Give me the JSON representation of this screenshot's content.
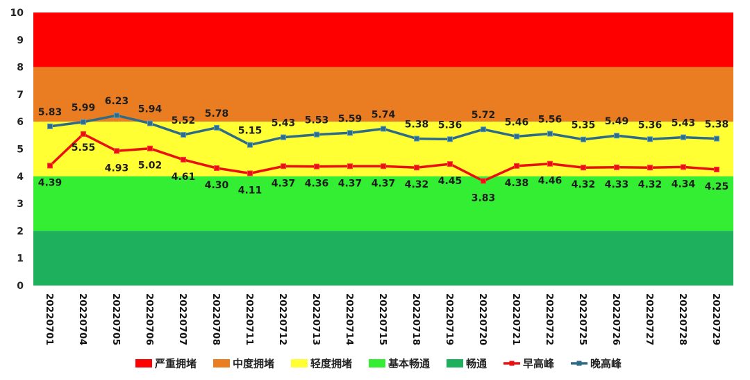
{
  "chart_data": {
    "type": "line",
    "title": "",
    "xlabel": "",
    "ylabel": "",
    "ylim": [
      0,
      10
    ],
    "yticks": [
      0,
      1,
      2,
      3,
      4,
      5,
      6,
      7,
      8,
      9,
      10
    ],
    "grid": false,
    "legend_position": "bottom",
    "categories": [
      "20220701",
      "20220704",
      "20220705",
      "20220706",
      "20220707",
      "20220708",
      "20220711",
      "20220712",
      "20220713",
      "20220714",
      "20220715",
      "20220718",
      "20220719",
      "20220720",
      "20220721",
      "20220722",
      "20220725",
      "20220726",
      "20220727",
      "20220728",
      "20220729"
    ],
    "bands": [
      {
        "name": "严重拥堵",
        "from": 8,
        "to": 10,
        "color": "#ff0000"
      },
      {
        "name": "中度拥堵",
        "from": 6,
        "to": 8,
        "color": "#ea7d22"
      },
      {
        "name": "轻度拥堵",
        "from": 4,
        "to": 6,
        "color": "#ffff33"
      },
      {
        "name": "基本畅通",
        "from": 2,
        "to": 4,
        "color": "#33ee33"
      },
      {
        "name": "畅通",
        "from": 0,
        "to": 2,
        "color": "#1fb05e"
      }
    ],
    "series": [
      {
        "name": "早高峰",
        "color": "#e81010",
        "values": [
          4.39,
          5.55,
          4.93,
          5.02,
          4.61,
          4.3,
          4.11,
          4.37,
          4.36,
          4.37,
          4.37,
          4.32,
          4.45,
          3.83,
          4.38,
          4.46,
          4.32,
          4.33,
          4.32,
          4.34,
          4.25
        ],
        "labels": [
          "4.39",
          "5.55",
          "4.93",
          "5.02",
          "4.61",
          "4.30",
          "4.11",
          "4.37",
          "4.36",
          "4.37",
          "4.37",
          "4.32",
          "4.45",
          "3.83",
          "4.38",
          "4.46",
          "4.32",
          "4.33",
          "4.32",
          "4.34",
          "4.25"
        ]
      },
      {
        "name": "晚高峰",
        "color": "#2e6b86",
        "values": [
          5.83,
          5.99,
          6.23,
          5.94,
          5.52,
          5.78,
          5.15,
          5.43,
          5.53,
          5.59,
          5.74,
          5.38,
          5.36,
          5.72,
          5.46,
          5.56,
          5.35,
          5.49,
          5.36,
          5.43,
          5.38
        ],
        "labels": [
          "5.83",
          "5.99",
          "6.23",
          "5.94",
          "5.52",
          "5.78",
          "5.15",
          "5.43",
          "5.53",
          "5.59",
          "5.74",
          "5.38",
          "5.36",
          "5.72",
          "5.46",
          "5.56",
          "5.35",
          "5.49",
          "5.36",
          "5.43",
          "5.38"
        ]
      }
    ]
  }
}
